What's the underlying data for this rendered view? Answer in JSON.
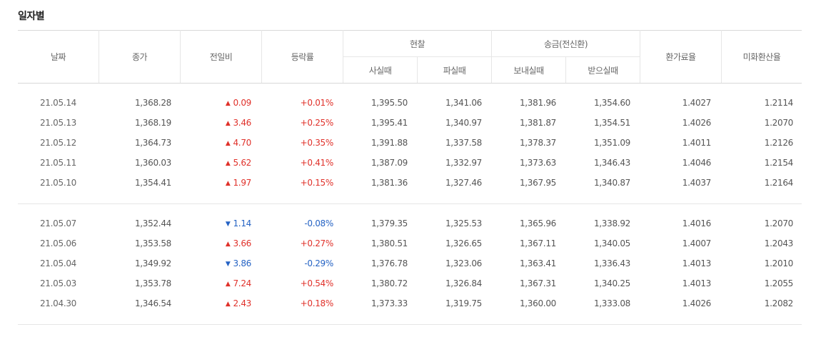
{
  "title": "일자별",
  "headers": {
    "date": "날짜",
    "close": "종가",
    "change": "전일비",
    "rate": "등락률",
    "cash": "현찰",
    "cash_buy": "사실때",
    "cash_sell": "파실때",
    "remit": "송금(전신환)",
    "remit_send": "보내실때",
    "remit_receive": "받으실때",
    "conv_rate": "환가료율",
    "usd_rate": "미화환산율"
  },
  "colors": {
    "up": "#e0312a",
    "down": "#2563c4"
  },
  "groups": [
    {
      "rows": [
        {
          "date": "21.05.14",
          "close": "1,368.28",
          "dir": "up",
          "change": "0.09",
          "rate": "+0.01%",
          "cash_buy": "1,395.50",
          "cash_sell": "1,341.06",
          "remit_send": "1,381.96",
          "remit_receive": "1,354.60",
          "conv_rate": "1.4027",
          "usd_rate": "1.2114"
        },
        {
          "date": "21.05.13",
          "close": "1,368.19",
          "dir": "up",
          "change": "3.46",
          "rate": "+0.25%",
          "cash_buy": "1,395.41",
          "cash_sell": "1,340.97",
          "remit_send": "1,381.87",
          "remit_receive": "1,354.51",
          "conv_rate": "1.4026",
          "usd_rate": "1.2070"
        },
        {
          "date": "21.05.12",
          "close": "1,364.73",
          "dir": "up",
          "change": "4.70",
          "rate": "+0.35%",
          "cash_buy": "1,391.88",
          "cash_sell": "1,337.58",
          "remit_send": "1,378.37",
          "remit_receive": "1,351.09",
          "conv_rate": "1.4011",
          "usd_rate": "1.2126"
        },
        {
          "date": "21.05.11",
          "close": "1,360.03",
          "dir": "up",
          "change": "5.62",
          "rate": "+0.41%",
          "cash_buy": "1,387.09",
          "cash_sell": "1,332.97",
          "remit_send": "1,373.63",
          "remit_receive": "1,346.43",
          "conv_rate": "1.4046",
          "usd_rate": "1.2154"
        },
        {
          "date": "21.05.10",
          "close": "1,354.41",
          "dir": "up",
          "change": "1.97",
          "rate": "+0.15%",
          "cash_buy": "1,381.36",
          "cash_sell": "1,327.46",
          "remit_send": "1,367.95",
          "remit_receive": "1,340.87",
          "conv_rate": "1.4037",
          "usd_rate": "1.2164"
        }
      ]
    },
    {
      "rows": [
        {
          "date": "21.05.07",
          "close": "1,352.44",
          "dir": "down",
          "change": "1.14",
          "rate": "-0.08%",
          "cash_buy": "1,379.35",
          "cash_sell": "1,325.53",
          "remit_send": "1,365.96",
          "remit_receive": "1,338.92",
          "conv_rate": "1.4016",
          "usd_rate": "1.2070"
        },
        {
          "date": "21.05.06",
          "close": "1,353.58",
          "dir": "up",
          "change": "3.66",
          "rate": "+0.27%",
          "cash_buy": "1,380.51",
          "cash_sell": "1,326.65",
          "remit_send": "1,367.11",
          "remit_receive": "1,340.05",
          "conv_rate": "1.4007",
          "usd_rate": "1.2043"
        },
        {
          "date": "21.05.04",
          "close": "1,349.92",
          "dir": "down",
          "change": "3.86",
          "rate": "-0.29%",
          "cash_buy": "1,376.78",
          "cash_sell": "1,323.06",
          "remit_send": "1,363.41",
          "remit_receive": "1,336.43",
          "conv_rate": "1.4013",
          "usd_rate": "1.2010"
        },
        {
          "date": "21.05.03",
          "close": "1,353.78",
          "dir": "up",
          "change": "7.24",
          "rate": "+0.54%",
          "cash_buy": "1,380.72",
          "cash_sell": "1,326.84",
          "remit_send": "1,367.31",
          "remit_receive": "1,340.25",
          "conv_rate": "1.4013",
          "usd_rate": "1.2055"
        },
        {
          "date": "21.04.30",
          "close": "1,346.54",
          "dir": "up",
          "change": "2.43",
          "rate": "+0.18%",
          "cash_buy": "1,373.33",
          "cash_sell": "1,319.75",
          "remit_send": "1,360.00",
          "remit_receive": "1,333.08",
          "conv_rate": "1.4026",
          "usd_rate": "1.2082"
        }
      ]
    }
  ]
}
